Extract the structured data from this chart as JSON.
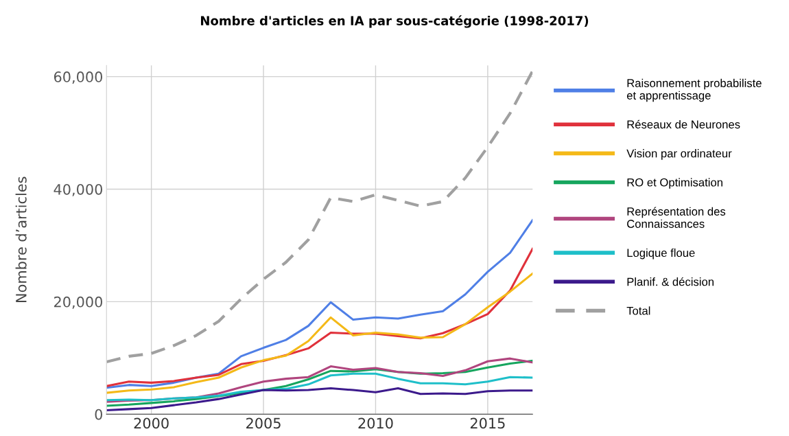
{
  "chart_data": {
    "type": "line",
    "title": "Nombre d'articles en IA par sous-catégorie (1998-2017)",
    "ylabel": "Nombre d’articles",
    "x": [
      1998,
      1999,
      2000,
      2001,
      2002,
      2003,
      2004,
      2005,
      2006,
      2007,
      2008,
      2009,
      2010,
      2011,
      2012,
      2013,
      2014,
      2015,
      2016,
      2017
    ],
    "xlim": [
      1998,
      2017
    ],
    "xticks": [
      2000,
      2005,
      2010,
      2015
    ],
    "ylim": [
      0,
      62000
    ],
    "yticks": [
      {
        "value": 0,
        "label": "0"
      },
      {
        "value": 20000,
        "label": "20,000"
      },
      {
        "value": 40000,
        "label": "40,000"
      },
      {
        "value": 60000,
        "label": "60,000"
      }
    ],
    "grid": true,
    "legend": "right",
    "marker": "none",
    "series": [
      {
        "name": "Raisonnement probabiliste\net apprentissage",
        "color": "#4f7fe6",
        "values": [
          4700,
          5200,
          5000,
          5600,
          6500,
          7200,
          10300,
          11800,
          13200,
          15700,
          19900,
          16800,
          17200,
          17000,
          17700,
          18300,
          21300,
          25300,
          28700,
          34500
        ]
      },
      {
        "name": "Réseaux de Neurones",
        "color": "#e0313b",
        "values": [
          5000,
          5800,
          5600,
          5900,
          6500,
          7000,
          8900,
          9500,
          10500,
          11700,
          14500,
          14300,
          14300,
          13900,
          13500,
          14400,
          16000,
          17800,
          22000,
          29400
        ]
      },
      {
        "name": "Vision par ordinateur",
        "color": "#f4b918",
        "values": [
          3800,
          4200,
          4400,
          4800,
          5700,
          6500,
          8300,
          9600,
          10400,
          13000,
          17200,
          14000,
          14500,
          14200,
          13600,
          13700,
          16000,
          19000,
          21800,
          25000
        ]
      },
      {
        "name": "RO et Optimisation",
        "color": "#16a55e",
        "values": [
          1500,
          1700,
          2000,
          2300,
          2700,
          3200,
          3800,
          4300,
          5000,
          6200,
          7700,
          7600,
          8000,
          7500,
          7200,
          7300,
          7500,
          8300,
          9000,
          9500
        ]
      },
      {
        "name": "Représentation des\nConnaissances",
        "color": "#b0457e",
        "values": [
          2200,
          2400,
          2500,
          2800,
          3000,
          3700,
          4800,
          5800,
          6300,
          6600,
          8500,
          7900,
          8200,
          7500,
          7300,
          6800,
          7800,
          9400,
          9900,
          9200
        ]
      },
      {
        "name": "Logique floue",
        "color": "#1fbfc9",
        "values": [
          2500,
          2600,
          2500,
          2800,
          3000,
          3300,
          4000,
          4300,
          4500,
          5300,
          6900,
          7200,
          7200,
          6300,
          5500,
          5500,
          5300,
          5800,
          6600,
          6500
        ]
      },
      {
        "name": "Planif. & décision",
        "color": "#3c1a8c",
        "values": [
          700,
          900,
          1100,
          1600,
          2100,
          2700,
          3500,
          4300,
          4200,
          4300,
          4600,
          4300,
          3900,
          4600,
          3600,
          3700,
          3600,
          4100,
          4200,
          4200
        ]
      },
      {
        "name": "Total",
        "color": "#a0a0a0",
        "line_style": "dashed",
        "values": [
          9300,
          10300,
          10800,
          12200,
          14000,
          16500,
          20500,
          24000,
          27000,
          31000,
          38500,
          37800,
          39000,
          38000,
          37000,
          37800,
          42000,
          47500,
          53500,
          61000
        ]
      }
    ]
  }
}
